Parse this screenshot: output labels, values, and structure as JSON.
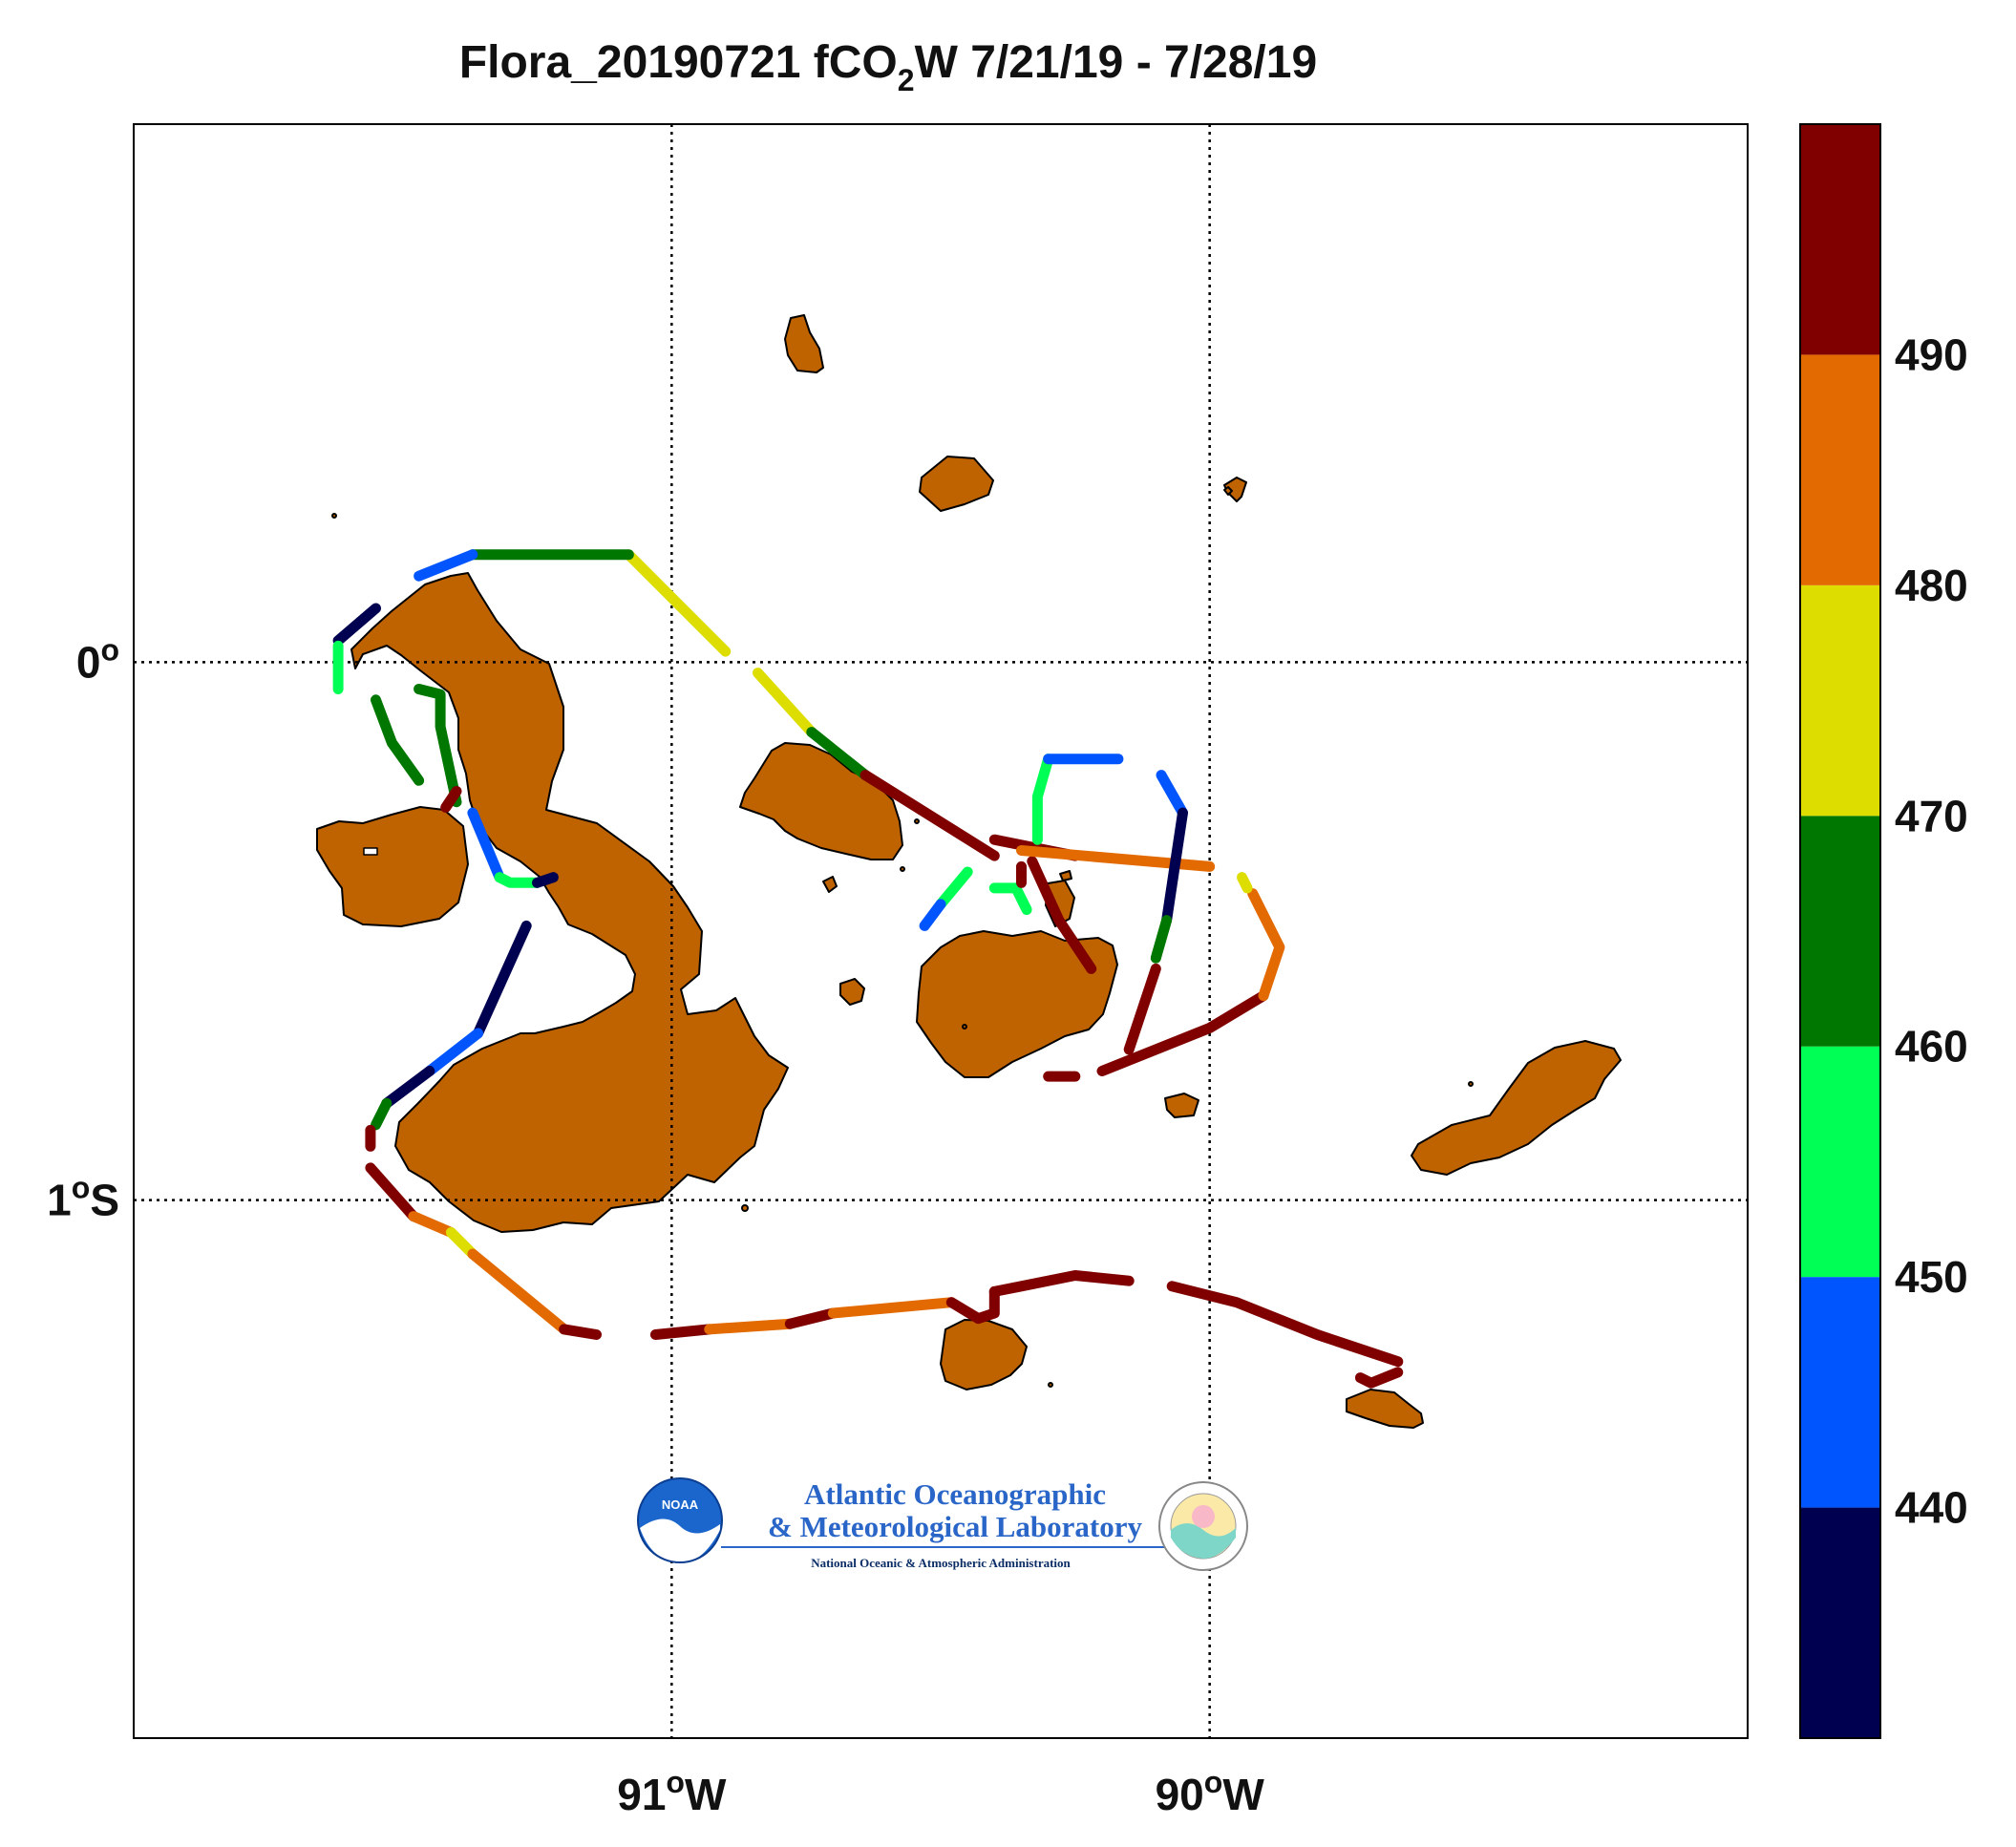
{
  "title": {
    "prefix": "Flora_20190721 fCO",
    "subscript": "2",
    "suffix": "W 7/21/19 - 7/28/19"
  },
  "axes": {
    "x_ticks": [
      {
        "value": -91,
        "label_deg": "91",
        "label_dir": "W"
      },
      {
        "value": -90,
        "label_deg": "90",
        "label_dir": "W"
      }
    ],
    "y_ticks": [
      {
        "value": 0,
        "label_deg": "0",
        "label_dir": ""
      },
      {
        "value": -1,
        "label_deg": "1",
        "label_dir": "S"
      }
    ],
    "lon_range": [
      -92.0,
      -89.0
    ],
    "lat_range": [
      -2.0,
      1.0
    ],
    "grid": "dotted at labeled ticks"
  },
  "colorbar": {
    "labels": [
      "490",
      "480",
      "470",
      "460",
      "450",
      "440"
    ],
    "bins": [
      {
        "from": 430,
        "to": 440,
        "color": "#000050"
      },
      {
        "from": 440,
        "to": 450,
        "color": "#0055ff"
      },
      {
        "from": 450,
        "to": 460,
        "color": "#00ff55"
      },
      {
        "from": 460,
        "to": 470,
        "color": "#007700"
      },
      {
        "from": 470,
        "to": 480,
        "color": "#dddd00"
      },
      {
        "from": 480,
        "to": 490,
        "color": "#e36a00"
      },
      {
        "from": 490,
        "to": 500,
        "color": "#800000"
      }
    ]
  },
  "colors": {
    "land": "#bf6200",
    "coast": "#000000",
    "grid": "#000000"
  },
  "logo": {
    "badge": "NOAA",
    "line1": "Atlantic Oceanographic",
    "line2": "& Meteorological Laboratory",
    "line3": "National Oceanic & Atmospheric Administration"
  },
  "track_segments": [
    {
      "v": 475,
      "pts": [
        [
          -90.9,
          0.02
        ],
        [
          -90.98,
          0.1
        ],
        [
          -91.08,
          0.2
        ]
      ]
    },
    {
      "v": 468,
      "pts": [
        [
          -91.08,
          0.2
        ],
        [
          -91.2,
          0.2
        ],
        [
          -91.37,
          0.2
        ]
      ]
    },
    {
      "v": 445,
      "pts": [
        [
          -91.37,
          0.2
        ],
        [
          -91.47,
          0.16
        ]
      ]
    },
    {
      "v": 437,
      "pts": [
        [
          -91.55,
          0.1
        ],
        [
          -91.62,
          0.04
        ]
      ]
    },
    {
      "v": 455,
      "pts": [
        [
          -91.62,
          0.03
        ],
        [
          -91.62,
          -0.05
        ]
      ]
    },
    {
      "v": 467,
      "pts": [
        [
          -91.55,
          -0.07
        ],
        [
          -91.52,
          -0.15
        ],
        [
          -91.47,
          -0.22
        ]
      ]
    },
    {
      "v": 462,
      "pts": [
        [
          -91.47,
          -0.05
        ],
        [
          -91.43,
          -0.06
        ],
        [
          -91.43,
          -0.12
        ],
        [
          -91.4,
          -0.26
        ]
      ]
    },
    {
      "v": 493,
      "pts": [
        [
          -91.4,
          -0.24
        ],
        [
          -91.42,
          -0.27
        ]
      ]
    },
    {
      "v": 440,
      "pts": [
        [
          -91.37,
          -0.28
        ],
        [
          -91.32,
          -0.4
        ]
      ]
    },
    {
      "v": 452,
      "pts": [
        [
          -91.32,
          -0.4
        ],
        [
          -91.3,
          -0.41
        ],
        [
          -91.25,
          -0.41
        ]
      ]
    },
    {
      "v": 434,
      "pts": [
        [
          -91.25,
          -0.41
        ],
        [
          -91.22,
          -0.4
        ]
      ]
    },
    {
      "v": 434,
      "pts": [
        [
          -91.27,
          -0.49
        ],
        [
          -91.36,
          -0.69
        ]
      ]
    },
    {
      "v": 445,
      "pts": [
        [
          -91.36,
          -0.69
        ],
        [
          -91.45,
          -0.76
        ]
      ]
    },
    {
      "v": 434,
      "pts": [
        [
          -91.45,
          -0.76
        ],
        [
          -91.53,
          -0.82
        ]
      ]
    },
    {
      "v": 465,
      "pts": [
        [
          -91.53,
          -0.82
        ],
        [
          -91.55,
          -0.86
        ]
      ]
    },
    {
      "v": 493,
      "pts": [
        [
          -91.56,
          -0.87
        ],
        [
          -91.56,
          -0.9
        ]
      ]
    },
    {
      "v": 493,
      "pts": [
        [
          -91.56,
          -0.94
        ],
        [
          -91.48,
          -1.03
        ]
      ]
    },
    {
      "v": 484,
      "pts": [
        [
          -91.48,
          -1.03
        ],
        [
          -91.41,
          -1.06
        ]
      ]
    },
    {
      "v": 475,
      "pts": [
        [
          -91.41,
          -1.06
        ],
        [
          -91.37,
          -1.1
        ]
      ]
    },
    {
      "v": 484,
      "pts": [
        [
          -91.37,
          -1.1
        ],
        [
          -91.2,
          -1.24
        ]
      ]
    },
    {
      "v": 495,
      "pts": [
        [
          -91.2,
          -1.24
        ],
        [
          -91.14,
          -1.25
        ]
      ]
    },
    {
      "v": 493,
      "pts": [
        [
          -91.03,
          -1.25
        ],
        [
          -90.93,
          -1.24
        ]
      ]
    },
    {
      "v": 484,
      "pts": [
        [
          -90.93,
          -1.24
        ],
        [
          -90.78,
          -1.23
        ]
      ]
    },
    {
      "v": 493,
      "pts": [
        [
          -90.78,
          -1.23
        ],
        [
          -90.7,
          -1.21
        ]
      ]
    },
    {
      "v": 484,
      "pts": [
        [
          -90.7,
          -1.21
        ],
        [
          -90.48,
          -1.19
        ]
      ]
    },
    {
      "v": 493,
      "pts": [
        [
          -90.48,
          -1.19
        ],
        [
          -90.43,
          -1.22
        ]
      ]
    },
    {
      "v": 495,
      "pts": [
        [
          -90.43,
          -1.22
        ],
        [
          -90.4,
          -1.21
        ],
        [
          -90.4,
          -1.17
        ]
      ]
    },
    {
      "v": 495,
      "pts": [
        [
          -90.4,
          -1.17
        ],
        [
          -90.35,
          -1.16
        ],
        [
          -90.25,
          -1.14
        ],
        [
          -90.15,
          -1.15
        ]
      ]
    },
    {
      "v": 493,
      "pts": [
        [
          -90.07,
          -1.16
        ],
        [
          -89.95,
          -1.19
        ],
        [
          -89.8,
          -1.25
        ],
        [
          -89.65,
          -1.3
        ]
      ]
    },
    {
      "v": 495,
      "pts": [
        [
          -89.65,
          -1.32
        ],
        [
          -89.7,
          -1.34
        ],
        [
          -89.72,
          -1.33
        ]
      ]
    },
    {
      "v": 473,
      "pts": [
        [
          -90.84,
          -0.02
        ],
        [
          -90.74,
          -0.13
        ]
      ]
    },
    {
      "v": 466,
      "pts": [
        [
          -90.74,
          -0.13
        ],
        [
          -90.64,
          -0.21
        ]
      ]
    },
    {
      "v": 493,
      "pts": [
        [
          -90.64,
          -0.21
        ],
        [
          -90.4,
          -0.36
        ]
      ]
    },
    {
      "v": 495,
      "pts": [
        [
          -90.4,
          -0.33
        ],
        [
          -90.3,
          -0.35
        ],
        [
          -90.25,
          -0.36
        ]
      ]
    },
    {
      "v": 493,
      "pts": [
        [
          -90.33,
          -0.37
        ],
        [
          -90.28,
          -0.48
        ],
        [
          -90.22,
          -0.57
        ]
      ]
    },
    {
      "v": 484,
      "pts": [
        [
          -90.35,
          -0.35
        ],
        [
          -90.0,
          -0.38
        ]
      ]
    },
    {
      "v": 456,
      "pts": [
        [
          -90.3,
          -0.18
        ],
        [
          -90.32,
          -0.25
        ],
        [
          -90.32,
          -0.33
        ]
      ]
    },
    {
      "v": 446,
      "pts": [
        [
          -90.3,
          -0.18
        ],
        [
          -90.17,
          -0.18
        ]
      ]
    },
    {
      "v": 456,
      "pts": [
        [
          -90.45,
          -0.39
        ],
        [
          -90.5,
          -0.45
        ]
      ]
    },
    {
      "v": 445,
      "pts": [
        [
          -90.5,
          -0.45
        ],
        [
          -90.53,
          -0.49
        ]
      ]
    },
    {
      "v": 457,
      "pts": [
        [
          -90.4,
          -0.42
        ],
        [
          -90.36,
          -0.42
        ],
        [
          -90.34,
          -0.46
        ]
      ]
    },
    {
      "v": 493,
      "pts": [
        [
          -90.35,
          -0.38
        ],
        [
          -90.35,
          -0.41
        ]
      ]
    },
    {
      "v": 446,
      "pts": [
        [
          -90.09,
          -0.21
        ],
        [
          -90.05,
          -0.28
        ]
      ]
    },
    {
      "v": 434,
      "pts": [
        [
          -90.05,
          -0.28
        ],
        [
          -90.08,
          -0.48
        ]
      ]
    },
    {
      "v": 462,
      "pts": [
        [
          -90.08,
          -0.48
        ],
        [
          -90.1,
          -0.55
        ]
      ]
    },
    {
      "v": 493,
      "pts": [
        [
          -90.1,
          -0.57
        ],
        [
          -90.15,
          -0.72
        ]
      ]
    },
    {
      "v": 495,
      "pts": [
        [
          -90.2,
          -0.76
        ],
        [
          -90.0,
          -0.68
        ],
        [
          -89.9,
          -0.62
        ]
      ]
    },
    {
      "v": 484,
      "pts": [
        [
          -89.9,
          -0.62
        ],
        [
          -89.87,
          -0.53
        ],
        [
          -89.92,
          -0.43
        ]
      ]
    },
    {
      "v": 475,
      "pts": [
        [
          -89.93,
          -0.42
        ],
        [
          -89.94,
          -0.4
        ]
      ]
    },
    {
      "v": 493,
      "pts": [
        [
          -90.25,
          -0.77
        ],
        [
          -90.3,
          -0.77
        ]
      ]
    }
  ]
}
